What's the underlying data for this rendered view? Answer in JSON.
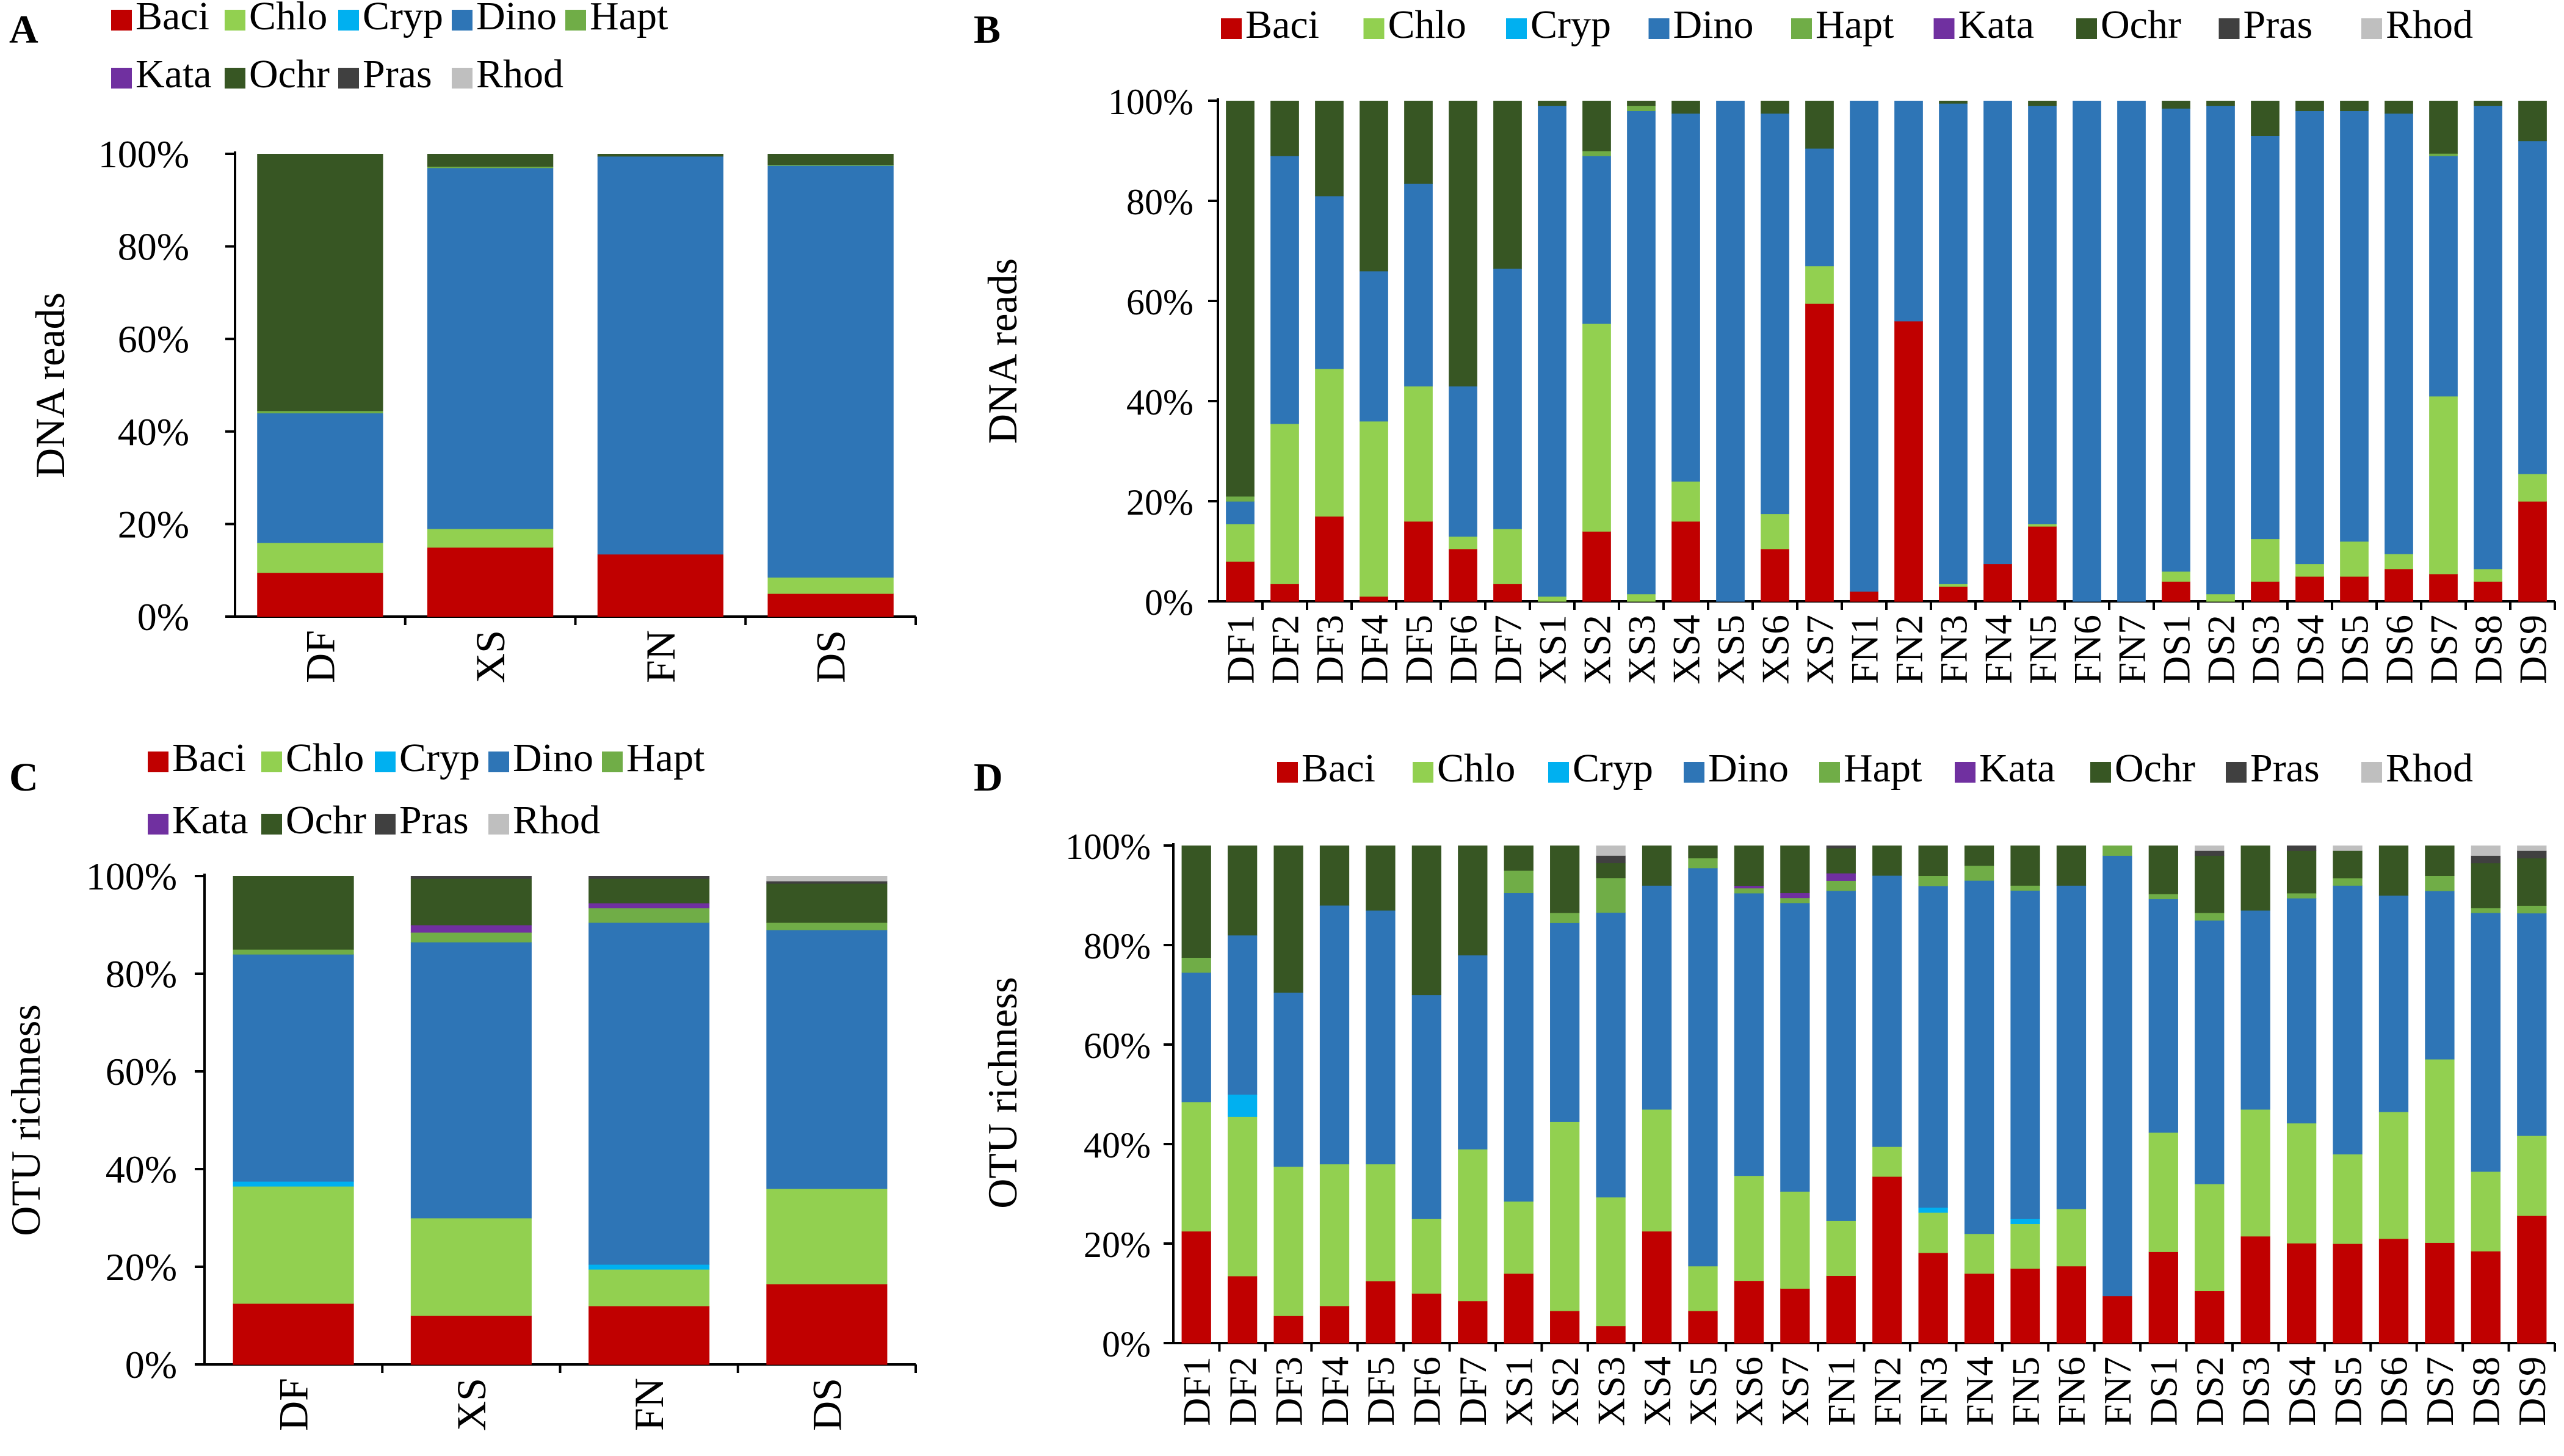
{
  "colors": {
    "Baci": "#c00000",
    "Chlo": "#92d050",
    "Cryp": "#00b0f0",
    "Dino": "#2e75b6",
    "Hapt": "#70ad47",
    "Kata": "#7030a0",
    "Ochr": "#375623",
    "Pras": "#404040",
    "Rhod": "#bfbfbf"
  },
  "chart_data": [
    {
      "panel": "A",
      "type": "stacked-bar",
      "ylabel": "DNA reads",
      "yticks": [
        "0%",
        "20%",
        "40%",
        "60%",
        "80%",
        "100%"
      ],
      "legend": [
        "Baci",
        "Chlo",
        "Cryp",
        "Dino",
        "Hapt",
        "Kata",
        "Ochr",
        "Pras",
        "Rhod"
      ],
      "categories": [
        "DF",
        "XS",
        "FN",
        "DS"
      ],
      "series": [
        {
          "name": "Baci",
          "values": [
            9.5,
            15,
            13.5,
            5
          ]
        },
        {
          "name": "Chlo",
          "values": [
            6.5,
            4,
            0,
            3.5
          ]
        },
        {
          "name": "Cryp",
          "values": [
            0,
            0,
            0,
            0
          ]
        },
        {
          "name": "Dino",
          "values": [
            28,
            78,
            86,
            89
          ]
        },
        {
          "name": "Hapt",
          "values": [
            0.5,
            0.3,
            0,
            0.2
          ]
        },
        {
          "name": "Kata",
          "values": [
            0,
            0,
            0,
            0
          ]
        },
        {
          "name": "Ochr",
          "values": [
            55.5,
            2.7,
            0.5,
            2.3
          ]
        },
        {
          "name": "Pras",
          "values": [
            0,
            0,
            0,
            0
          ]
        },
        {
          "name": "Rhod",
          "values": [
            0,
            0,
            0,
            0
          ]
        }
      ]
    },
    {
      "panel": "B",
      "type": "stacked-bar",
      "ylabel": "DNA reads",
      "yticks": [
        "0%",
        "20%",
        "40%",
        "60%",
        "80%",
        "100%"
      ],
      "legend": [
        "Baci",
        "Chlo",
        "Cryp",
        "Dino",
        "Hapt",
        "Kata",
        "Ochr",
        "Pras",
        "Rhod"
      ],
      "categories": [
        "DF1",
        "DF2",
        "DF3",
        "DF4",
        "DF5",
        "DF6",
        "DF7",
        "XS1",
        "XS2",
        "XS3",
        "XS4",
        "XS5",
        "XS6",
        "XS7",
        "FN1",
        "FN2",
        "FN3",
        "FN4",
        "FN5",
        "FN6",
        "FN7",
        "DS1",
        "DS2",
        "DS3",
        "DS4",
        "DS5",
        "DS6",
        "DS7",
        "DS8",
        "DS9"
      ],
      "series": [
        {
          "name": "Baci",
          "values": [
            8,
            3.5,
            17,
            1,
            16,
            10.5,
            3.5,
            0,
            14,
            0,
            16,
            0,
            10.5,
            59.5,
            2,
            56,
            3,
            7.5,
            15,
            0,
            0,
            4,
            0,
            4,
            5,
            5,
            6.5,
            5.5,
            4,
            20
          ]
        },
        {
          "name": "Chlo",
          "values": [
            7.5,
            32,
            29.5,
            35,
            27,
            2.5,
            11,
            1,
            41.5,
            1.5,
            8,
            0,
            7,
            7.5,
            0,
            0,
            0.5,
            0,
            0.5,
            0,
            0,
            2,
            1.5,
            8.5,
            2.5,
            7,
            3,
            35.5,
            2.5,
            5.5
          ]
        },
        {
          "name": "Cryp",
          "values": [
            0,
            0,
            0,
            0,
            0,
            0,
            0,
            0,
            0,
            0,
            0,
            0,
            0,
            0,
            0,
            0,
            0,
            0,
            0,
            0,
            0,
            0,
            0,
            0,
            0,
            0,
            0,
            0,
            0,
            0
          ]
        },
        {
          "name": "Dino",
          "values": [
            4.5,
            53.5,
            34.5,
            30,
            40.5,
            30,
            52,
            98,
            33.5,
            96.5,
            73.5,
            100,
            80,
            23.5,
            98,
            44,
            96,
            92.5,
            83.5,
            100,
            100,
            92.5,
            97.5,
            80.5,
            90.5,
            86,
            88,
            48,
            92.5,
            66.5
          ]
        },
        {
          "name": "Hapt",
          "values": [
            1,
            0,
            0,
            0,
            0,
            0,
            0,
            0,
            1,
            1,
            0,
            0,
            0,
            0,
            0,
            0,
            0,
            0,
            0,
            0,
            0,
            0,
            0,
            0,
            0,
            0,
            0,
            0.5,
            0,
            0
          ]
        },
        {
          "name": "Kata",
          "values": [
            0,
            0,
            0,
            0,
            0,
            0,
            0,
            0,
            0,
            0,
            0,
            0,
            0,
            0,
            0,
            0,
            0,
            0,
            0,
            0,
            0,
            0,
            0,
            0,
            0,
            0,
            0,
            0,
            0,
            0
          ]
        },
        {
          "name": "Ochr",
          "values": [
            79,
            11,
            19,
            34,
            16.5,
            57,
            33.5,
            1,
            10,
            1,
            2.5,
            0,
            2.5,
            9.5,
            0,
            0,
            0.5,
            0,
            1,
            0,
            0,
            1.5,
            1,
            7,
            2,
            2,
            2.5,
            10.5,
            1,
            8
          ]
        },
        {
          "name": "Pras",
          "values": [
            0,
            0,
            0,
            0,
            0,
            0,
            0,
            0,
            0,
            0,
            0,
            0,
            0,
            0,
            0,
            0,
            0,
            0,
            0,
            0,
            0,
            0,
            0,
            0,
            0,
            0,
            0,
            0,
            0,
            0
          ]
        },
        {
          "name": "Rhod",
          "values": [
            0,
            0,
            0,
            0,
            0,
            0,
            0,
            0,
            0,
            0,
            0,
            0,
            0,
            0,
            0,
            0,
            0,
            0,
            0,
            0,
            0,
            0,
            0,
            0,
            0,
            0,
            0,
            0,
            0,
            0
          ]
        }
      ]
    },
    {
      "panel": "C",
      "type": "stacked-bar",
      "ylabel": "OTU richness",
      "yticks": [
        "0%",
        "20%",
        "40%",
        "60%",
        "80%",
        "100%"
      ],
      "legend": [
        "Baci",
        "Chlo",
        "Cryp",
        "Dino",
        "Hapt",
        "Kata",
        "Ochr",
        "Pras",
        "Rhod"
      ],
      "categories": [
        "DF",
        "XS",
        "FN",
        "DS"
      ],
      "series": [
        {
          "name": "Baci",
          "values": [
            12.5,
            10,
            12,
            16.5
          ]
        },
        {
          "name": "Chlo",
          "values": [
            24,
            20,
            7.5,
            19.5
          ]
        },
        {
          "name": "Cryp",
          "values": [
            1,
            0,
            1,
            0
          ]
        },
        {
          "name": "Dino",
          "values": [
            46.5,
            56.5,
            70,
            53
          ]
        },
        {
          "name": "Hapt",
          "values": [
            1,
            2,
            3,
            1.5
          ]
        },
        {
          "name": "Kata",
          "values": [
            0,
            1.5,
            1,
            0
          ]
        },
        {
          "name": "Ochr",
          "values": [
            15,
            9.5,
            5,
            8
          ]
        },
        {
          "name": "Pras",
          "values": [
            0,
            0.5,
            0.5,
            0.5
          ]
        },
        {
          "name": "Rhod",
          "values": [
            0,
            0,
            0,
            1
          ]
        }
      ]
    },
    {
      "panel": "D",
      "type": "stacked-bar",
      "ylabel": "OTU richness",
      "yticks": [
        "0%",
        "20%",
        "40%",
        "60%",
        "80%",
        "100%"
      ],
      "legend": [
        "Baci",
        "Chlo",
        "Cryp",
        "Dino",
        "Hapt",
        "Kata",
        "Ochr",
        "Pras",
        "Rhod"
      ],
      "categories": [
        "DF1",
        "DF2",
        "DF3",
        "DF4",
        "DF5",
        "DF6",
        "DF7",
        "XS1",
        "XS2",
        "XS3",
        "XS4",
        "XS5",
        "XS6",
        "XS7",
        "FN1",
        "FN2",
        "FN3",
        "FN4",
        "FN5",
        "FN6",
        "FN7",
        "DS1",
        "DS2",
        "DS3",
        "DS4",
        "DS5",
        "DS6",
        "DS7",
        "DS8",
        "DS9"
      ],
      "series": [
        {
          "name": "Baci",
          "values": [
            22.5,
            13.5,
            5.5,
            7.5,
            12.5,
            10,
            8.5,
            14,
            6.5,
            3.5,
            22.5,
            6.5,
            12.5,
            11,
            13.5,
            33.5,
            18,
            14,
            15,
            15.5,
            9.5,
            18,
            10.5,
            21.5,
            20,
            20,
            21,
            20,
            18.5,
            25.5
          ]
        },
        {
          "name": "Chlo",
          "values": [
            26,
            32,
            30,
            28.5,
            23.5,
            15,
            30.5,
            14.5,
            38,
            26,
            24.5,
            9,
            21,
            19.5,
            11,
            6,
            8,
            8,
            9,
            11.5,
            0,
            23.5,
            21.5,
            25.5,
            24,
            18,
            25.5,
            36.5,
            16,
            16
          ]
        },
        {
          "name": "Cryp",
          "values": [
            0,
            4.5,
            0,
            0,
            0,
            0,
            0,
            0,
            0,
            0,
            0,
            0,
            0,
            0,
            0,
            0,
            1,
            0,
            1,
            0,
            0,
            0,
            0,
            0,
            0,
            0,
            0,
            0,
            0,
            0
          ]
        },
        {
          "name": "Dino",
          "values": [
            26,
            32,
            35,
            52,
            51,
            45,
            39,
            62,
            40,
            57.5,
            45,
            80,
            56.5,
            58,
            66,
            54.5,
            64,
            71,
            66,
            65,
            88.5,
            46,
            53,
            40,
            45,
            54,
            43.5,
            33.5,
            52,
            44.5
          ]
        },
        {
          "name": "Hapt",
          "values": [
            3,
            0,
            0,
            0,
            0,
            0,
            0,
            4.5,
            2,
            7,
            0,
            2,
            1,
            1,
            2,
            0,
            2,
            3,
            1,
            0,
            2,
            1,
            1.5,
            0,
            1,
            1.5,
            0,
            3,
            1,
            1.5
          ]
        },
        {
          "name": "Kata",
          "values": [
            0,
            0,
            0,
            0,
            0,
            0,
            0,
            0,
            0,
            0,
            0,
            0,
            0.5,
            1,
            1.5,
            0,
            0,
            0,
            0,
            0,
            0,
            0,
            0,
            0,
            0,
            0,
            0,
            0,
            0,
            0
          ]
        },
        {
          "name": "Ochr",
          "values": [
            22.5,
            18,
            29.5,
            12,
            13,
            30,
            22,
            5,
            13.5,
            3,
            8,
            2.5,
            8,
            9.5,
            5,
            6,
            6,
            4,
            8,
            8,
            0,
            9.5,
            11.5,
            13,
            8.5,
            5.5,
            10,
            6,
            9,
            9.5
          ]
        },
        {
          "name": "Pras",
          "values": [
            0,
            0,
            0,
            0,
            0,
            0,
            0,
            0,
            0,
            1.5,
            0,
            0,
            0,
            0,
            0.5,
            0,
            0,
            0,
            0,
            0,
            0,
            0,
            1,
            0,
            1,
            0,
            0,
            0,
            1.5,
            1.5
          ]
        },
        {
          "name": "Rhod",
          "values": [
            0,
            0,
            0,
            0,
            0,
            0,
            0,
            0,
            0,
            2,
            0,
            0,
            0,
            0,
            0,
            0,
            0,
            0,
            0,
            0,
            0,
            0,
            1,
            0,
            0,
            1,
            0,
            0,
            2,
            1
          ]
        }
      ]
    }
  ]
}
